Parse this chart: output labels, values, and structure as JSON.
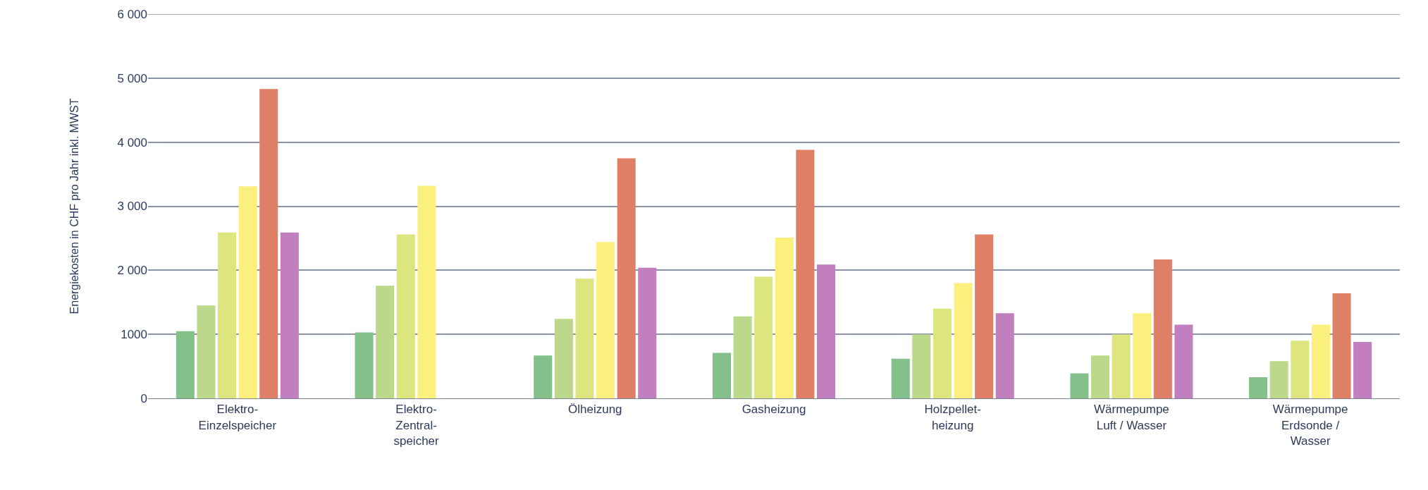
{
  "chart_data": {
    "type": "bar",
    "ylabel": "Energiekosten in CHF pro Jahr inkl. MWST",
    "categories": [
      "Elektro-\nEinzelspeicher",
      "Elektro-\nZentral-\nspeicher",
      "Ölheizung",
      "Gasheizung",
      "Holzpellet-\nheizung",
      "Wärmepumpe\nLuft / Wasser",
      "Wärmepumpe\nErdsonde /\nWasser"
    ],
    "series": [
      {
        "color": "#84c08a",
        "values": [
          1050,
          1030,
          670,
          710,
          620,
          390,
          330
        ]
      },
      {
        "color": "#bcd88a",
        "values": [
          1450,
          1760,
          1240,
          1280,
          1000,
          670,
          580
        ]
      },
      {
        "color": "#dce57e",
        "values": [
          2590,
          2560,
          1870,
          1900,
          1400,
          1000,
          900
        ]
      },
      {
        "color": "#fbf07e",
        "values": [
          3310,
          3320,
          2440,
          2510,
          1800,
          1330,
          1150
        ]
      },
      {
        "color": "#df7f66",
        "values": [
          4830,
          null,
          3750,
          3880,
          2560,
          2170,
          1640
        ]
      },
      {
        "color": "#c27fbf",
        "values": [
          2590,
          null,
          2040,
          2090,
          1330,
          1150,
          880
        ]
      }
    ],
    "ylim": [
      0,
      6000
    ],
    "yticks": [
      0,
      {
        "value": 1000,
        "label": "1000"
      },
      {
        "value": 2000,
        "label": "2 000"
      },
      {
        "value": 3000,
        "label": "3 000"
      },
      {
        "value": 4000,
        "label": "4 000"
      },
      {
        "value": 5000,
        "label": "5 000"
      },
      {
        "value": 6000,
        "label": "6 000"
      }
    ],
    "grid": "y"
  }
}
